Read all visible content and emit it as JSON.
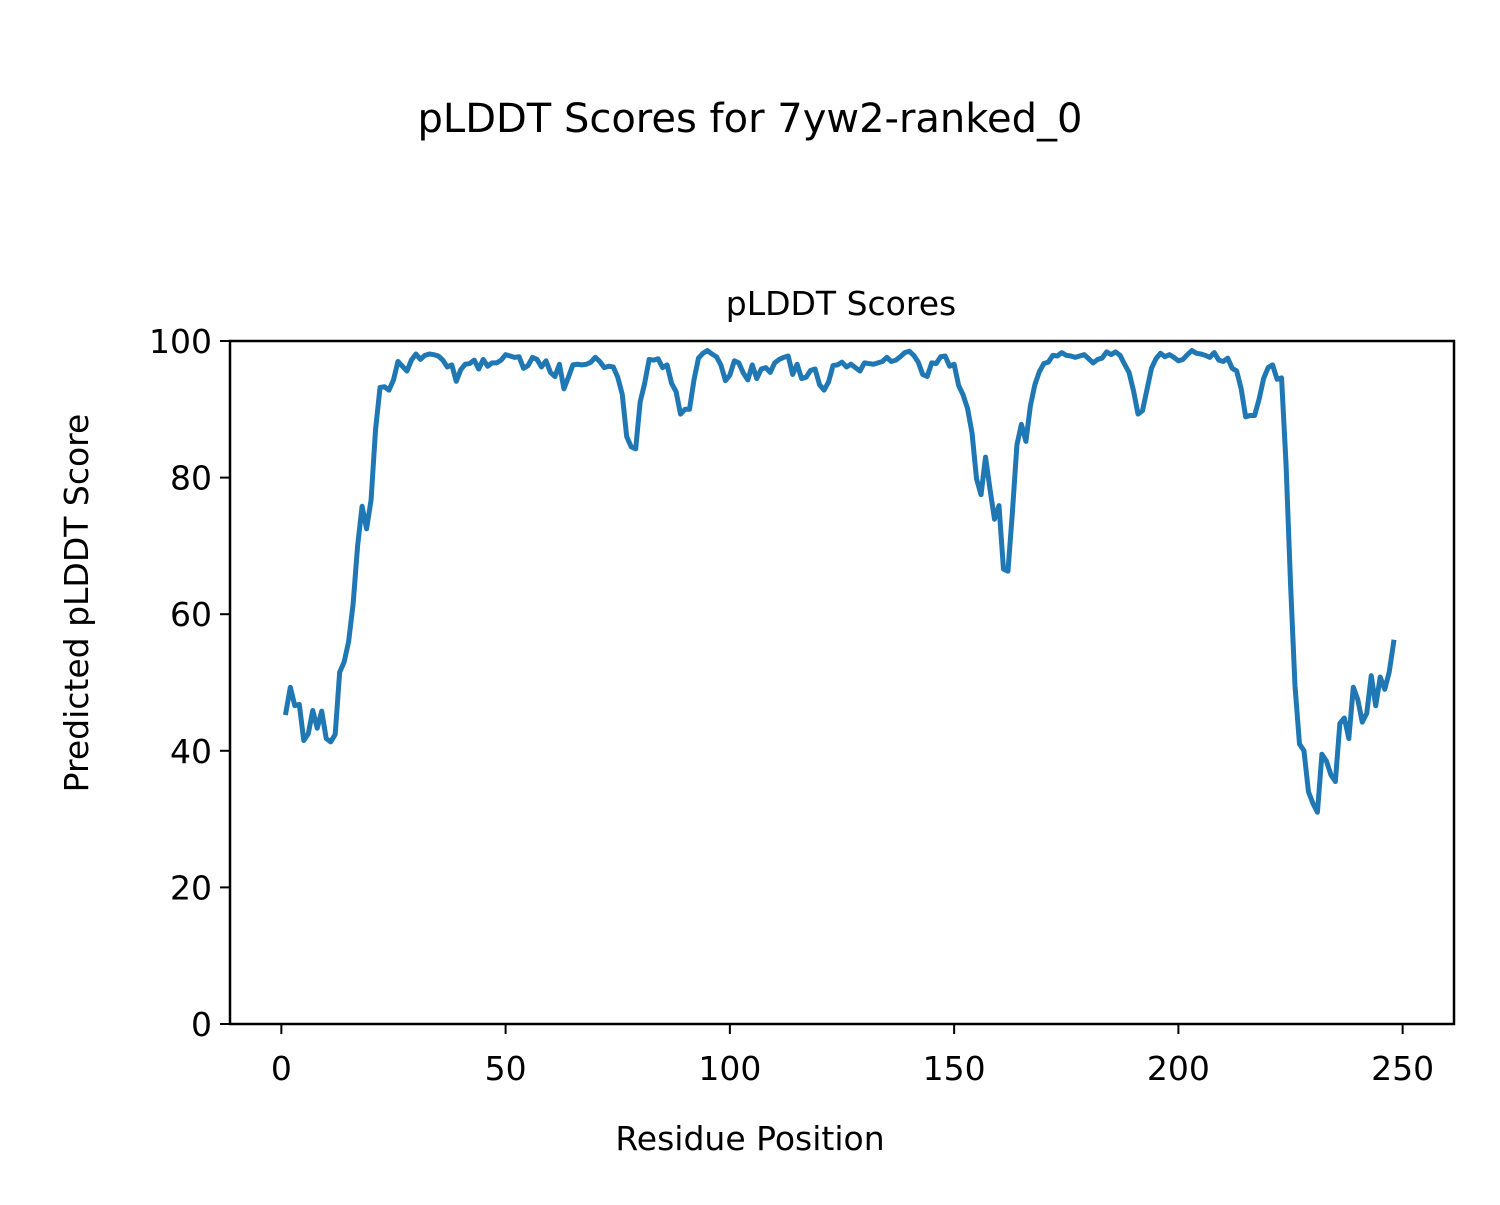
{
  "chart_data": {
    "type": "line",
    "suptitle": "pLDDT Scores for 7yw2-ranked_0",
    "title": "pLDDT Scores",
    "xlabel": "Residue Position",
    "ylabel": "Predicted pLDDT Score",
    "xlim": [
      -11.45,
      261.45
    ],
    "ylim": [
      0,
      100
    ],
    "xticks": [
      0,
      50,
      100,
      150,
      200,
      250
    ],
    "yticks": [
      0,
      20,
      40,
      60,
      80,
      100
    ],
    "grid": false,
    "legend": "none",
    "line_color": "#1f77b4",
    "x_start": 1,
    "x_step": 1,
    "values": [
      45.6,
      49.3,
      46.6,
      46.8,
      41.5,
      42.5,
      45.9,
      43.3,
      45.8,
      41.8,
      41.3,
      42.4,
      51.5,
      53.0,
      56.0,
      61.5,
      70.0,
      75.8,
      72.5,
      76.7,
      87.0,
      93.2,
      93.3,
      92.8,
      94.3,
      97.0,
      96.3,
      95.6,
      97.2,
      98.1,
      97.3,
      97.9,
      98.1,
      98.0,
      97.8,
      97.2,
      96.2,
      96.5,
      94.1,
      95.8,
      96.6,
      96.7,
      97.2,
      95.9,
      97.3,
      96.3,
      96.8,
      96.8,
      97.2,
      98.0,
      97.8,
      97.6,
      97.7,
      96.0,
      96.4,
      97.6,
      97.3,
      96.2,
      97.1,
      95.4,
      94.8,
      96.6,
      93.0,
      94.7,
      96.5,
      96.6,
      96.5,
      96.6,
      96.9,
      97.6,
      97.0,
      96.1,
      96.3,
      96.2,
      94.7,
      92.2,
      86.0,
      84.5,
      84.2,
      91.1,
      93.8,
      97.3,
      97.2,
      97.4,
      96.1,
      96.5,
      93.8,
      92.6,
      89.3,
      90.0,
      90.0,
      94.3,
      97.5,
      98.2,
      98.6,
      98.1,
      97.7,
      96.5,
      94.2,
      95.0,
      97.1,
      96.8,
      95.3,
      94.3,
      96.5,
      94.5,
      95.9,
      96.1,
      95.4,
      96.8,
      97.3,
      97.6,
      97.8,
      95.1,
      96.6,
      94.5,
      94.7,
      95.7,
      95.9,
      93.6,
      92.8,
      94.0,
      96.4,
      96.5,
      96.9,
      96.2,
      96.6,
      96.1,
      95.6,
      96.8,
      96.7,
      96.6,
      96.8,
      97.0,
      97.6,
      97.0,
      97.2,
      97.7,
      98.3,
      98.5,
      97.9,
      96.9,
      95.1,
      94.8,
      96.8,
      96.7,
      97.7,
      97.8,
      96.3,
      96.6,
      93.5,
      92.1,
      90.1,
      86.5,
      79.8,
      77.5,
      83.0,
      78.3,
      73.9,
      75.9,
      66.6,
      66.3,
      75.0,
      84.8,
      87.8,
      85.3,
      90.5,
      93.6,
      95.5,
      96.7,
      96.9,
      97.9,
      97.8,
      98.3,
      97.9,
      97.8,
      97.6,
      97.8,
      98.0,
      97.4,
      96.8,
      97.3,
      97.5,
      98.4,
      98.0,
      98.4,
      97.9,
      96.6,
      95.4,
      92.7,
      89.3,
      89.8,
      92.9,
      96.0,
      97.4,
      98.2,
      97.7,
      98.0,
      97.6,
      97.1,
      97.3,
      98.0,
      98.6,
      98.2,
      98.1,
      97.9,
      97.6,
      98.3,
      97.2,
      97.0,
      97.5,
      96.0,
      95.6,
      93.0,
      88.9,
      89.1,
      89.1,
      91.5,
      94.5,
      96.1,
      96.5,
      94.4,
      94.6,
      82.0,
      64.5,
      49.5,
      41.0,
      40.0,
      34.0,
      32.3,
      31.0,
      39.5,
      38.5,
      36.5,
      35.5,
      44.0,
      44.8,
      41.8,
      49.3,
      47.5,
      44.2,
      45.5,
      51.0,
      46.6,
      50.8,
      49.0,
      51.5,
      55.9
    ]
  }
}
